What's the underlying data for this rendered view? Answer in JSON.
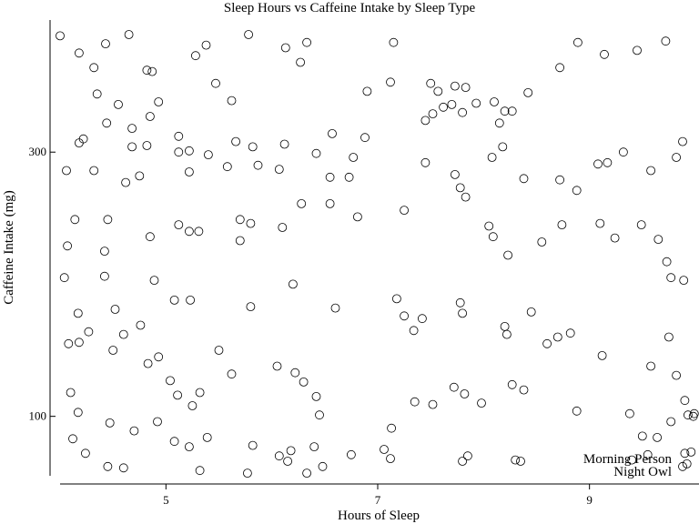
{
  "chart_data": {
    "type": "scatter",
    "title": "Sleep Hours vs Caffeine Intake by Sleep Type",
    "xlabel": "Hours of Sleep",
    "ylabel": "Caffeine Intake (mg)",
    "xlim": [
      4.0,
      10.0
    ],
    "ylim": [
      55,
      400
    ],
    "x_ticks": [
      5,
      7,
      9
    ],
    "y_ticks": [
      100,
      300
    ],
    "x_tick_labels": [
      "5",
      "7",
      "9"
    ],
    "y_tick_labels": [
      "100",
      "300"
    ],
    "grid": false,
    "legend_position": "bottom-right",
    "legend": [
      "Morning Person",
      "Night Owl"
    ],
    "marker": "open-circle",
    "points": [
      [
        4.0,
        388
      ],
      [
        4.43,
        382
      ],
      [
        4.65,
        389
      ],
      [
        4.82,
        362
      ],
      [
        5.38,
        381
      ],
      [
        5.78,
        389
      ],
      [
        6.13,
        379
      ],
      [
        6.33,
        383
      ],
      [
        4.18,
        375
      ],
      [
        4.32,
        364
      ],
      [
        4.87,
        361
      ],
      [
        5.28,
        373
      ],
      [
        5.47,
        352
      ],
      [
        6.27,
        368
      ],
      [
        6.9,
        346
      ],
      [
        7.12,
        353
      ],
      [
        4.35,
        344
      ],
      [
        4.55,
        336
      ],
      [
        4.93,
        338
      ],
      [
        4.85,
        327
      ],
      [
        4.44,
        322
      ],
      [
        4.68,
        318
      ],
      [
        5.62,
        339
      ],
      [
        6.57,
        314
      ],
      [
        4.18,
        307
      ],
      [
        4.22,
        310
      ],
      [
        4.68,
        304
      ],
      [
        4.82,
        305
      ],
      [
        5.12,
        312
      ],
      [
        5.22,
        301
      ],
      [
        5.4,
        298
      ],
      [
        5.58,
        289
      ],
      [
        5.66,
        308
      ],
      [
        5.82,
        304
      ],
      [
        6.12,
        306
      ],
      [
        6.42,
        299
      ],
      [
        6.88,
        311
      ],
      [
        6.77,
        296
      ],
      [
        6.55,
        281
      ],
      [
        6.73,
        281
      ],
      [
        4.06,
        286
      ],
      [
        4.32,
        286
      ],
      [
        4.62,
        277
      ],
      [
        4.75,
        282
      ],
      [
        5.12,
        300
      ],
      [
        5.22,
        285
      ],
      [
        5.87,
        290
      ],
      [
        6.07,
        287
      ],
      [
        4.14,
        249
      ],
      [
        4.45,
        249
      ],
      [
        4.07,
        229
      ],
      [
        4.42,
        225
      ],
      [
        4.85,
        236
      ],
      [
        5.12,
        245
      ],
      [
        5.22,
        240
      ],
      [
        5.31,
        240
      ],
      [
        5.7,
        249
      ],
      [
        5.7,
        233
      ],
      [
        5.8,
        246
      ],
      [
        6.1,
        243
      ],
      [
        6.28,
        261
      ],
      [
        6.55,
        261
      ],
      [
        6.81,
        251
      ],
      [
        7.25,
        256
      ],
      [
        4.04,
        205
      ],
      [
        4.17,
        178
      ],
      [
        4.27,
        164
      ],
      [
        4.42,
        206
      ],
      [
        4.52,
        181
      ],
      [
        4.6,
        162
      ],
      [
        4.76,
        169
      ],
      [
        4.89,
        203
      ],
      [
        5.08,
        188
      ],
      [
        5.23,
        188
      ],
      [
        5.8,
        183
      ],
      [
        6.2,
        200
      ],
      [
        6.6,
        182
      ],
      [
        7.18,
        189
      ],
      [
        7.25,
        176
      ],
      [
        7.34,
        165
      ],
      [
        4.08,
        155
      ],
      [
        4.18,
        156
      ],
      [
        4.5,
        150
      ],
      [
        4.83,
        140
      ],
      [
        4.93,
        145
      ],
      [
        5.04,
        127
      ],
      [
        5.11,
        116
      ],
      [
        5.25,
        108
      ],
      [
        5.32,
        118
      ],
      [
        5.5,
        150
      ],
      [
        5.62,
        132
      ],
      [
        6.05,
        138
      ],
      [
        6.22,
        133
      ],
      [
        6.3,
        126
      ],
      [
        6.42,
        115
      ],
      [
        6.45,
        101
      ],
      [
        4.1,
        118
      ],
      [
        4.17,
        103
      ],
      [
        4.47,
        95
      ],
      [
        4.7,
        89
      ],
      [
        4.92,
        96
      ],
      [
        5.08,
        81
      ],
      [
        5.22,
        77
      ],
      [
        5.39,
        84
      ],
      [
        5.82,
        78
      ],
      [
        6.07,
        70
      ],
      [
        6.18,
        74
      ],
      [
        6.33,
        57
      ],
      [
        6.48,
        62
      ],
      [
        6.75,
        71
      ],
      [
        7.06,
        75
      ],
      [
        7.13,
        91
      ],
      [
        7.15,
        383
      ],
      [
        7.5,
        352
      ],
      [
        7.57,
        346
      ],
      [
        7.73,
        350
      ],
      [
        7.83,
        349
      ],
      [
        7.93,
        337
      ],
      [
        8.1,
        338
      ],
      [
        8.15,
        322
      ],
      [
        8.2,
        331
      ],
      [
        8.27,
        331
      ],
      [
        8.42,
        345
      ],
      [
        8.72,
        364
      ],
      [
        8.89,
        383
      ],
      [
        9.14,
        374
      ],
      [
        9.45,
        377
      ],
      [
        9.72,
        384
      ],
      [
        7.45,
        324
      ],
      [
        7.52,
        329
      ],
      [
        7.62,
        334
      ],
      [
        7.7,
        336
      ],
      [
        7.8,
        330
      ],
      [
        8.08,
        296
      ],
      [
        8.18,
        304
      ],
      [
        8.38,
        280
      ],
      [
        8.72,
        279
      ],
      [
        8.88,
        271
      ],
      [
        9.08,
        291
      ],
      [
        9.17,
        292
      ],
      [
        9.32,
        300
      ],
      [
        9.58,
        286
      ],
      [
        9.82,
        296
      ],
      [
        9.88,
        308
      ],
      [
        7.45,
        292
      ],
      [
        7.73,
        283
      ],
      [
        7.78,
        273
      ],
      [
        7.83,
        266
      ],
      [
        8.05,
        244
      ],
      [
        8.09,
        236
      ],
      [
        8.23,
        222
      ],
      [
        8.55,
        232
      ],
      [
        8.74,
        245
      ],
      [
        9.1,
        246
      ],
      [
        9.24,
        235
      ],
      [
        9.49,
        245
      ],
      [
        9.65,
        234
      ],
      [
        9.73,
        217
      ],
      [
        9.77,
        205
      ],
      [
        9.89,
        203
      ],
      [
        7.42,
        174
      ],
      [
        7.78,
        186
      ],
      [
        7.8,
        178
      ],
      [
        8.2,
        168
      ],
      [
        8.22,
        162
      ],
      [
        8.45,
        179
      ],
      [
        8.6,
        155
      ],
      [
        8.7,
        160
      ],
      [
        8.82,
        163
      ],
      [
        9.12,
        146
      ],
      [
        9.58,
        138
      ],
      [
        9.75,
        160
      ],
      [
        9.82,
        131
      ],
      [
        9.9,
        112
      ],
      [
        9.93,
        101
      ],
      [
        9.98,
        100
      ],
      [
        7.35,
        111
      ],
      [
        7.52,
        109
      ],
      [
        7.72,
        122
      ],
      [
        7.82,
        117
      ],
      [
        7.98,
        110
      ],
      [
        8.27,
        124
      ],
      [
        8.38,
        120
      ],
      [
        8.88,
        104
      ],
      [
        9.38,
        102
      ],
      [
        9.5,
        85
      ],
      [
        9.64,
        84
      ],
      [
        9.77,
        96
      ],
      [
        9.9,
        72
      ],
      [
        9.92,
        64
      ],
      [
        9.96,
        73
      ],
      [
        9.99,
        102
      ],
      [
        4.12,
        83
      ],
      [
        4.24,
        72
      ],
      [
        4.45,
        62
      ],
      [
        4.6,
        61
      ],
      [
        5.32,
        59
      ],
      [
        5.77,
        57
      ],
      [
        6.15,
        66
      ],
      [
        6.4,
        77
      ],
      [
        7.12,
        68
      ],
      [
        7.8,
        66
      ],
      [
        7.85,
        70
      ],
      [
        8.3,
        67
      ],
      [
        8.35,
        66
      ],
      [
        9.4,
        67
      ],
      [
        9.55,
        71
      ],
      [
        9.88,
        62
      ]
    ]
  }
}
